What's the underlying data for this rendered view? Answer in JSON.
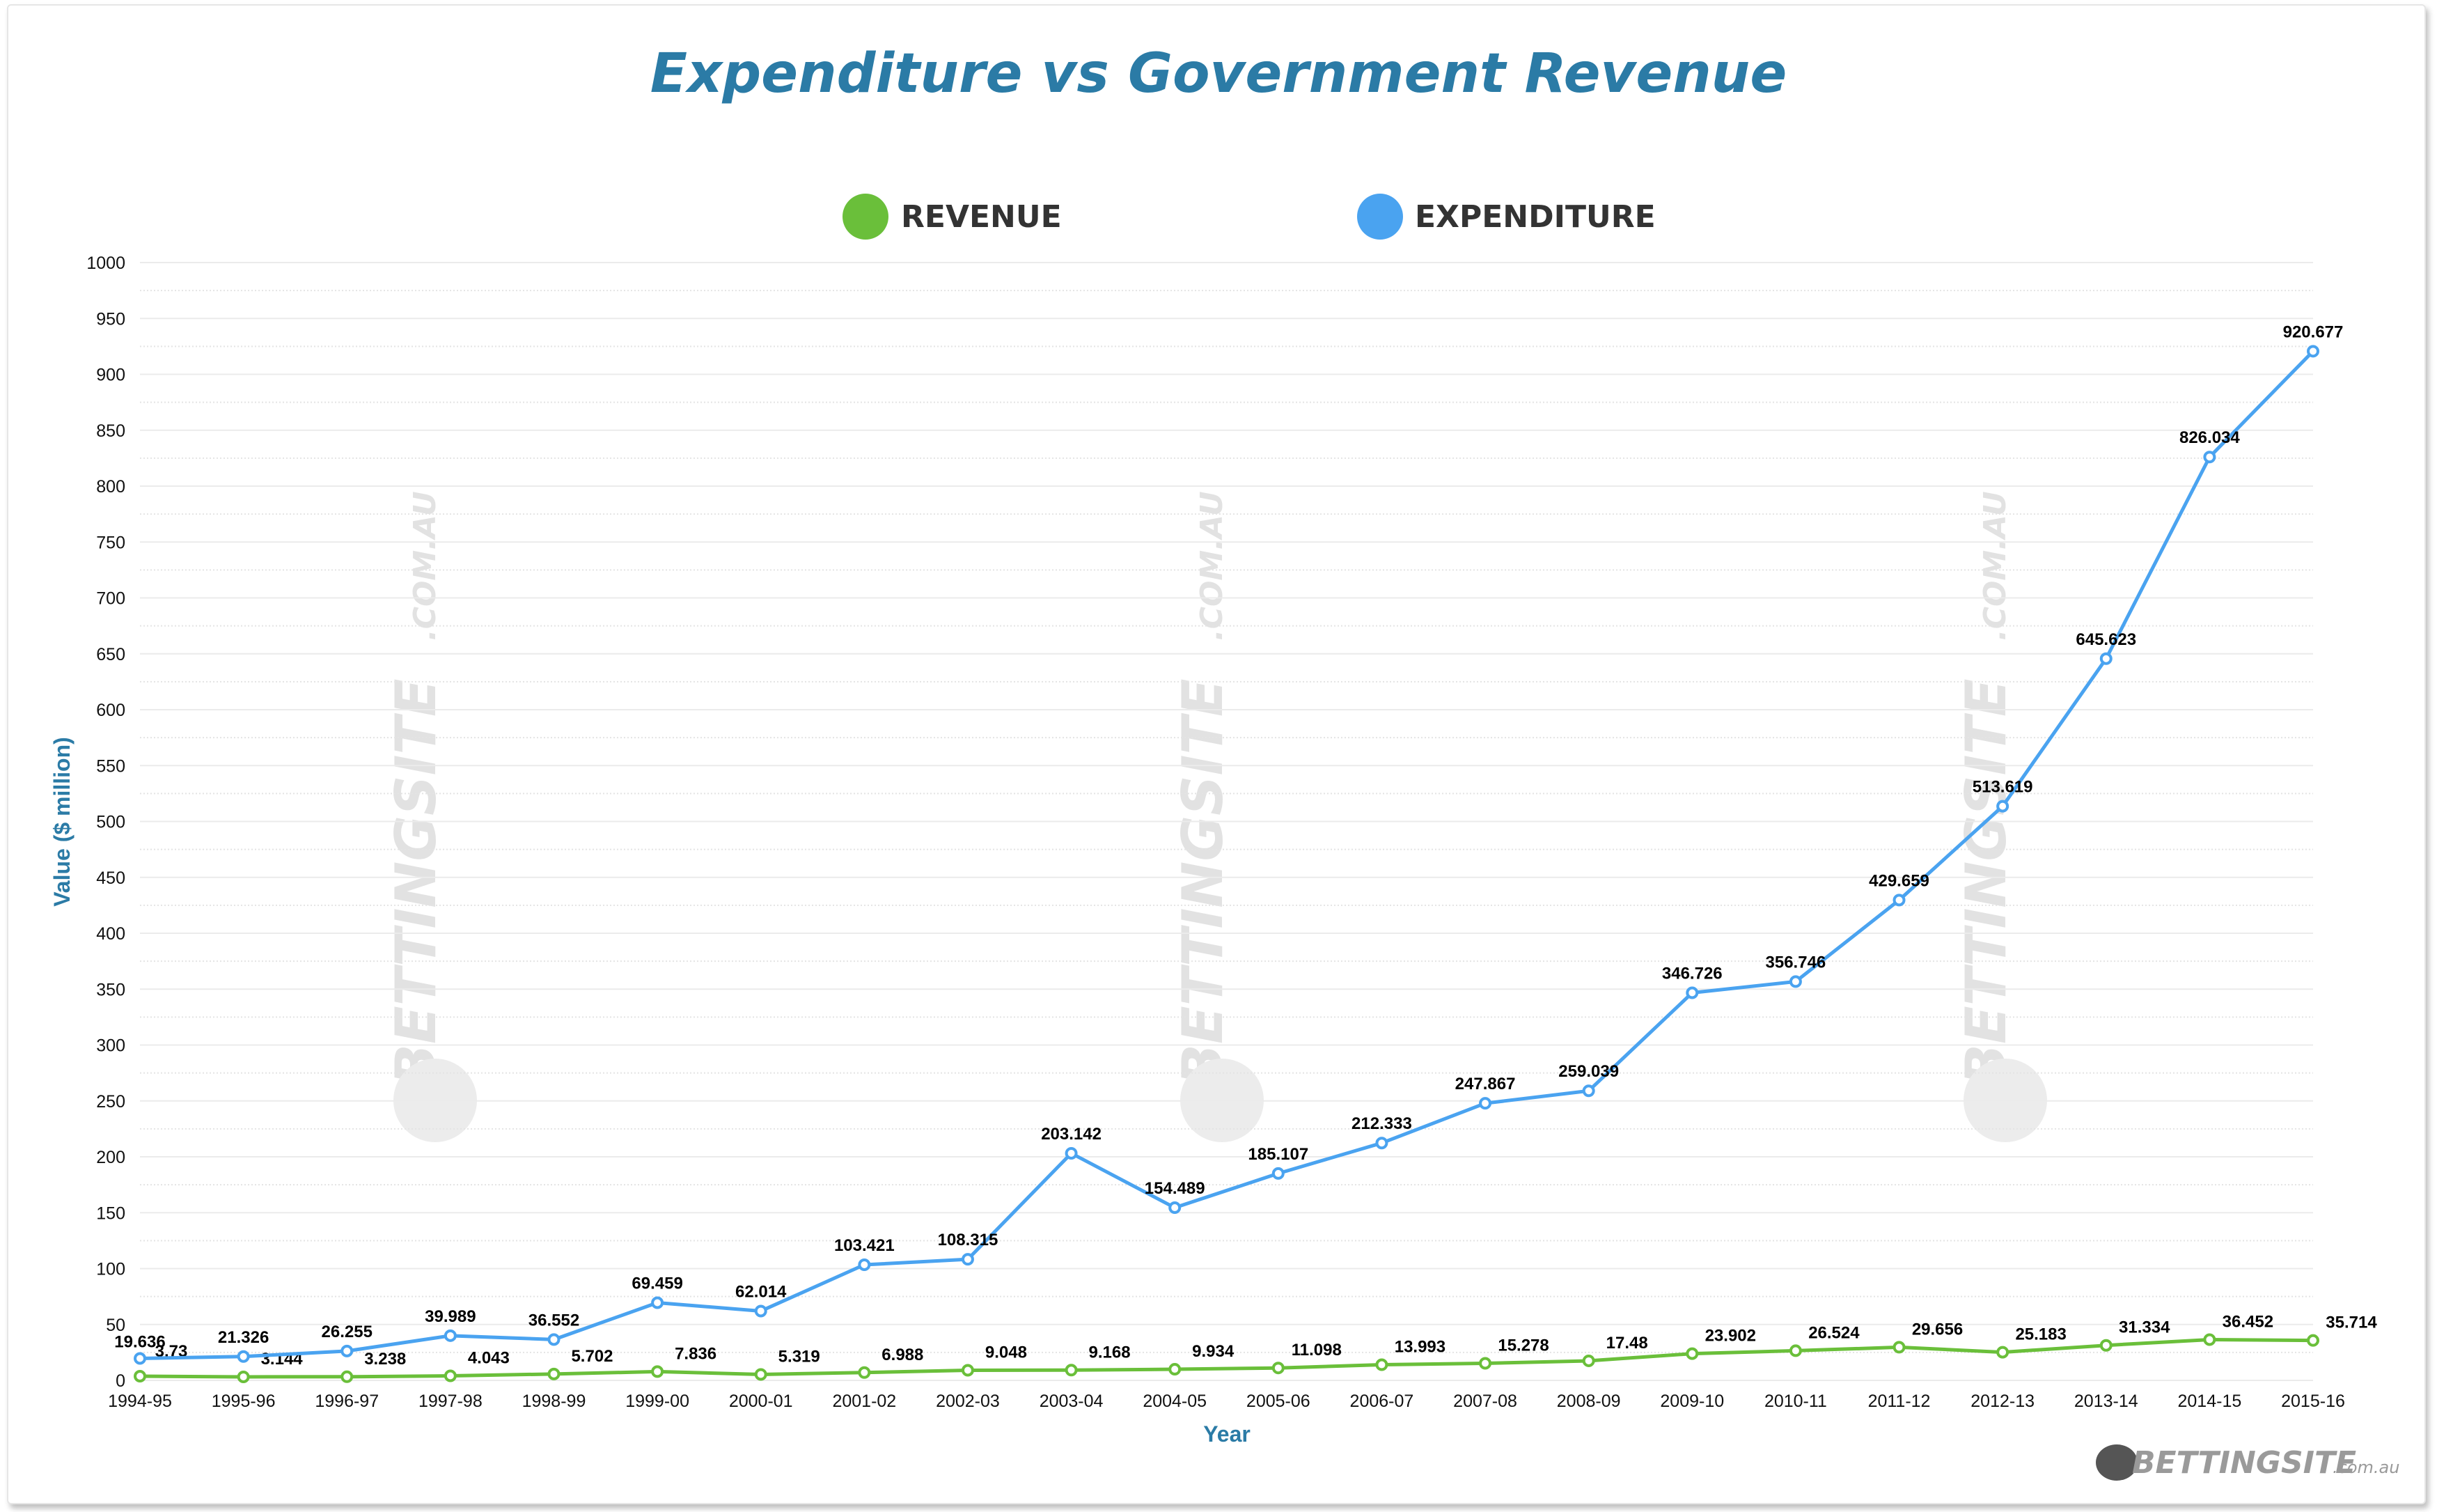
{
  "chart_data": {
    "type": "line",
    "title": "Expenditure vs Government Revenue",
    "xlabel": "Year",
    "ylabel": "Value ($ million)",
    "ylim": [
      0,
      1000
    ],
    "yticks": [
      0,
      50,
      100,
      150,
      200,
      250,
      300,
      350,
      400,
      450,
      500,
      550,
      600,
      650,
      700,
      750,
      800,
      850,
      900,
      950,
      1000
    ],
    "grid": true,
    "legend_placement": "top-center",
    "categories": [
      "1994-95",
      "1995-96",
      "1996-97",
      "1997-98",
      "1998-99",
      "1999-00",
      "2000-01",
      "2001-02",
      "2002-03",
      "2003-04",
      "2004-05",
      "2005-06",
      "2006-07",
      "2007-08",
      "2008-09",
      "2009-10",
      "2010-11",
      "2011-12",
      "2012-13",
      "2013-14",
      "2014-15",
      "2015-16"
    ],
    "series": [
      {
        "name": "REVENUE",
        "color": "#6abf3a",
        "values": [
          3.73,
          3.144,
          3.238,
          4.043,
          5.702,
          7.836,
          5.319,
          6.988,
          9.048,
          9.168,
          9.934,
          11.098,
          13.993,
          15.278,
          17.48,
          23.902,
          26.524,
          29.656,
          25.183,
          31.334,
          36.452,
          35.714
        ]
      },
      {
        "name": "EXPENDITURE",
        "color": "#4aa3f0",
        "values": [
          19.636,
          21.326,
          26.255,
          39.989,
          36.552,
          69.459,
          62.014,
          103.421,
          108.315,
          203.142,
          154.489,
          185.107,
          212.333,
          247.867,
          259.039,
          346.726,
          356.746,
          429.659,
          513.619,
          645.623,
          826.034,
          920.677
        ]
      }
    ],
    "watermark": "BETTINGSITE.COM.AU",
    "logo": "BETTINGSITE.com.au"
  }
}
